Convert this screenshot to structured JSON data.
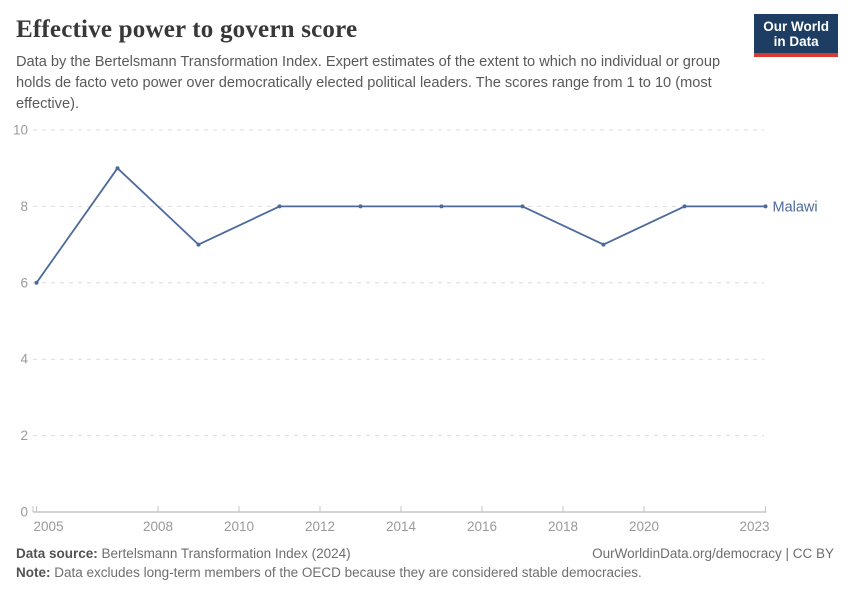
{
  "header": {
    "title": "Effective power to govern score",
    "subtitle": "Data by the Bertelsmann Transformation Index. Expert estimates of the extent to which no individual or group holds de facto veto power over democratically elected political leaders. The scores range from 1 to 10 (most effective).",
    "logo": {
      "line1": "Our World",
      "line2": "in Data",
      "bg_color": "#1d3d63",
      "bar_color": "#d93a34"
    }
  },
  "chart_data": {
    "type": "line",
    "title": "Effective power to govern score",
    "x": [
      2005,
      2007,
      2009,
      2011,
      2013,
      2015,
      2017,
      2019,
      2021,
      2023
    ],
    "series": [
      {
        "name": "Malawi",
        "values": [
          6,
          9,
          7,
          8,
          8,
          8,
          8,
          7,
          8,
          8
        ],
        "color": "#4c6a9c"
      }
    ],
    "xlim": [
      2005,
      2023
    ],
    "ylim": [
      0,
      10
    ],
    "x_ticks": [
      2005,
      2008,
      2010,
      2012,
      2014,
      2016,
      2018,
      2020,
      2023
    ],
    "y_ticks": [
      0,
      2,
      4,
      6,
      8,
      10
    ],
    "grid": "horizontal-dashed",
    "legend_position": "end-of-line"
  },
  "colors": {
    "line": "#4c6a9c",
    "gridline": "#dcdcdc",
    "axis_line": "#a9a9a9",
    "tick_mark": "#c4c4c4",
    "tick_text": "#9a9a9a"
  },
  "footer": {
    "source_label": "Data source:",
    "source_value": "Bertelsmann Transformation Index (2024)",
    "link": "OurWorldinData.org/democracy | CC BY",
    "note_label": "Note:",
    "note_value": "Data excludes long-term members of the OECD because they are considered stable democracies."
  }
}
